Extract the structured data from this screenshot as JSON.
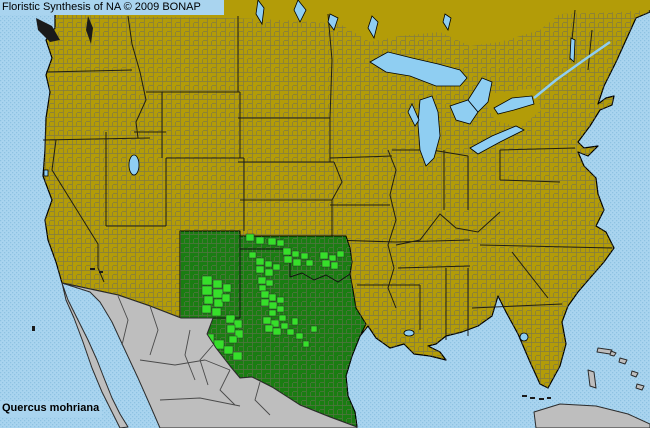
{
  "header": {
    "title": "Floristic Synthesis of NA © 2009 BONAP"
  },
  "footer": {
    "species_name": "Quercus mohriana"
  },
  "map": {
    "colors": {
      "ocean_base": "#A9D4EF",
      "ocean_dot": "#84BBDC",
      "label_background": "#A9D4EF",
      "land_absent_olive": "#B39C08",
      "county_line_gray": "#6E6E58",
      "border_black": "#111111",
      "state_present_green": "#1A7D12",
      "county_present_green": "#36DF2A",
      "no_data_gray": "#BEBEBE",
      "no_data_border": "#3A3A3A",
      "lake_blue": "#8FCEF2"
    },
    "depicted": {
      "taxon": "Quercus mohriana",
      "state_level_presence": [
        "New Mexico",
        "Oklahoma",
        "Texas"
      ],
      "surrounding_regions_no_data": [
        "Mexico",
        "Cuba",
        "Bahamas"
      ]
    },
    "county_presence_rects": [
      [
        246,
        234,
        8,
        7
      ],
      [
        256,
        237,
        8,
        7
      ],
      [
        268,
        238,
        8,
        7
      ],
      [
        277,
        240,
        7,
        6
      ],
      [
        283,
        248,
        8,
        7
      ],
      [
        292,
        251,
        7,
        6
      ],
      [
        284,
        256,
        8,
        7
      ],
      [
        293,
        259,
        8,
        7
      ],
      [
        301,
        253,
        7,
        6
      ],
      [
        306,
        260,
        7,
        6
      ],
      [
        320,
        252,
        8,
        7
      ],
      [
        329,
        255,
        7,
        6
      ],
      [
        322,
        260,
        8,
        7
      ],
      [
        331,
        262,
        7,
        7
      ],
      [
        337,
        251,
        7,
        6
      ],
      [
        249,
        252,
        7,
        6
      ],
      [
        256,
        258,
        8,
        7
      ],
      [
        265,
        261,
        7,
        6
      ],
      [
        256,
        266,
        8,
        7
      ],
      [
        265,
        269,
        8,
        7
      ],
      [
        273,
        264,
        7,
        6
      ],
      [
        258,
        277,
        8,
        7
      ],
      [
        266,
        280,
        7,
        6
      ],
      [
        259,
        285,
        7,
        6
      ],
      [
        202,
        276,
        10,
        9
      ],
      [
        213,
        280,
        9,
        8
      ],
      [
        202,
        286,
        10,
        9
      ],
      [
        213,
        289,
        10,
        9
      ],
      [
        223,
        284,
        8,
        8
      ],
      [
        204,
        296,
        9,
        8
      ],
      [
        214,
        299,
        9,
        8
      ],
      [
        202,
        305,
        9,
        8
      ],
      [
        212,
        308,
        9,
        8
      ],
      [
        222,
        294,
        8,
        8
      ],
      [
        226,
        315,
        9,
        8
      ],
      [
        234,
        320,
        8,
        8
      ],
      [
        227,
        325,
        8,
        8
      ],
      [
        235,
        330,
        8,
        8
      ],
      [
        229,
        336,
        8,
        7
      ],
      [
        204,
        334,
        10,
        9
      ],
      [
        214,
        340,
        10,
        9
      ],
      [
        224,
        346,
        9,
        8
      ],
      [
        233,
        352,
        9,
        8
      ],
      [
        261,
        291,
        8,
        7
      ],
      [
        269,
        294,
        7,
        7
      ],
      [
        261,
        299,
        8,
        7
      ],
      [
        269,
        302,
        8,
        7
      ],
      [
        277,
        297,
        7,
        6
      ],
      [
        277,
        306,
        7,
        6
      ],
      [
        269,
        310,
        7,
        6
      ],
      [
        263,
        317,
        8,
        7
      ],
      [
        271,
        320,
        8,
        7
      ],
      [
        279,
        315,
        7,
        6
      ],
      [
        265,
        325,
        8,
        7
      ],
      [
        273,
        328,
        8,
        7
      ],
      [
        281,
        323,
        7,
        6
      ],
      [
        287,
        329,
        7,
        6
      ],
      [
        292,
        318,
        6,
        7
      ],
      [
        296,
        333,
        7,
        6
      ],
      [
        303,
        341,
        6,
        6
      ],
      [
        311,
        326,
        6,
        6
      ]
    ]
  }
}
